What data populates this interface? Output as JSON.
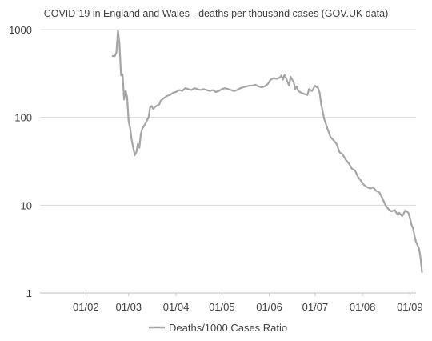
{
  "chart_data": {
    "type": "line",
    "title": "COVID-19 in England and Wales - deaths per thousand cases (GOV.UK data)",
    "xlabel": "",
    "ylabel": "",
    "x_scale": "date",
    "y_scale": "log",
    "ylim": [
      1,
      1000
    ],
    "xlim": [
      "2021-01-02",
      "2021-09-05"
    ],
    "x_tick_labels": [
      "01/02",
      "01/03",
      "01/04",
      "01/05",
      "01/06",
      "01/07",
      "01/08",
      "01/09"
    ],
    "y_tick_labels": [
      "1",
      "10",
      "100",
      "1000"
    ],
    "grid": "horizontal",
    "legend_position": "bottom",
    "series": [
      {
        "name": "Deaths/1000 Cases Ratio",
        "color": "#a5a5a5",
        "points": [
          [
            "2021-02-18",
            500
          ],
          [
            "2021-02-20",
            500
          ],
          [
            "2021-02-21",
            550
          ],
          [
            "2021-02-22",
            980
          ],
          [
            "2021-02-23",
            700
          ],
          [
            "2021-02-24",
            300
          ],
          [
            "2021-02-25",
            310
          ],
          [
            "2021-02-26",
            160
          ],
          [
            "2021-02-27",
            200
          ],
          [
            "2021-02-28",
            170
          ],
          [
            "2021-03-01",
            90
          ],
          [
            "2021-03-02",
            75
          ],
          [
            "2021-03-03",
            55
          ],
          [
            "2021-03-05",
            37
          ],
          [
            "2021-03-06",
            40
          ],
          [
            "2021-03-07",
            50
          ],
          [
            "2021-03-08",
            45
          ],
          [
            "2021-03-09",
            65
          ],
          [
            "2021-03-10",
            75
          ],
          [
            "2021-03-12",
            85
          ],
          [
            "2021-03-14",
            100
          ],
          [
            "2021-03-15",
            130
          ],
          [
            "2021-03-16",
            135
          ],
          [
            "2021-03-17",
            125
          ],
          [
            "2021-03-19",
            135
          ],
          [
            "2021-03-21",
            140
          ],
          [
            "2021-03-22",
            155
          ],
          [
            "2021-03-24",
            165
          ],
          [
            "2021-03-26",
            175
          ],
          [
            "2021-03-28",
            180
          ],
          [
            "2021-03-30",
            190
          ],
          [
            "2021-04-01",
            195
          ],
          [
            "2021-04-03",
            205
          ],
          [
            "2021-04-05",
            200
          ],
          [
            "2021-04-07",
            215
          ],
          [
            "2021-04-09",
            210
          ],
          [
            "2021-04-11",
            205
          ],
          [
            "2021-04-13",
            215
          ],
          [
            "2021-04-15",
            210
          ],
          [
            "2021-04-17",
            205
          ],
          [
            "2021-04-19",
            210
          ],
          [
            "2021-04-21",
            205
          ],
          [
            "2021-04-23",
            200
          ],
          [
            "2021-04-25",
            205
          ],
          [
            "2021-04-27",
            195
          ],
          [
            "2021-04-29",
            200
          ],
          [
            "2021-05-01",
            210
          ],
          [
            "2021-05-03",
            215
          ],
          [
            "2021-05-05",
            210
          ],
          [
            "2021-05-07",
            205
          ],
          [
            "2021-05-09",
            200
          ],
          [
            "2021-05-11",
            205
          ],
          [
            "2021-05-13",
            215
          ],
          [
            "2021-05-15",
            220
          ],
          [
            "2021-05-17",
            225
          ],
          [
            "2021-05-19",
            230
          ],
          [
            "2021-05-21",
            230
          ],
          [
            "2021-05-23",
            235
          ],
          [
            "2021-05-25",
            225
          ],
          [
            "2021-05-27",
            220
          ],
          [
            "2021-05-29",
            225
          ],
          [
            "2021-05-31",
            240
          ],
          [
            "2021-06-02",
            270
          ],
          [
            "2021-06-04",
            280
          ],
          [
            "2021-06-06",
            275
          ],
          [
            "2021-06-08",
            285
          ],
          [
            "2021-06-09",
            300
          ],
          [
            "2021-06-10",
            270
          ],
          [
            "2021-06-11",
            305
          ],
          [
            "2021-06-12",
            280
          ],
          [
            "2021-06-14",
            230
          ],
          [
            "2021-06-15",
            290
          ],
          [
            "2021-06-17",
            250
          ],
          [
            "2021-06-18",
            210
          ],
          [
            "2021-06-19",
            225
          ],
          [
            "2021-06-20",
            200
          ],
          [
            "2021-06-22",
            190
          ],
          [
            "2021-06-24",
            185
          ],
          [
            "2021-06-26",
            180
          ],
          [
            "2021-06-27",
            210
          ],
          [
            "2021-06-29",
            200
          ],
          [
            "2021-07-01",
            230
          ],
          [
            "2021-07-03",
            215
          ],
          [
            "2021-07-04",
            190
          ],
          [
            "2021-07-05",
            140
          ],
          [
            "2021-07-07",
            95
          ],
          [
            "2021-07-09",
            75
          ],
          [
            "2021-07-11",
            60
          ],
          [
            "2021-07-13",
            55
          ],
          [
            "2021-07-15",
            50
          ],
          [
            "2021-07-17",
            40
          ],
          [
            "2021-07-19",
            38
          ],
          [
            "2021-07-21",
            33
          ],
          [
            "2021-07-23",
            30
          ],
          [
            "2021-07-25",
            26
          ],
          [
            "2021-07-27",
            25
          ],
          [
            "2021-07-29",
            21
          ],
          [
            "2021-07-31",
            19
          ],
          [
            "2021-08-02",
            17
          ],
          [
            "2021-08-04",
            16
          ],
          [
            "2021-08-06",
            15.5
          ],
          [
            "2021-08-08",
            16
          ],
          [
            "2021-08-10",
            14.5
          ],
          [
            "2021-08-12",
            14
          ],
          [
            "2021-08-14",
            12
          ],
          [
            "2021-08-16",
            10
          ],
          [
            "2021-08-18",
            9
          ],
          [
            "2021-08-20",
            8.5
          ],
          [
            "2021-08-22",
            8.8
          ],
          [
            "2021-08-24",
            7.8
          ],
          [
            "2021-08-25",
            8.2
          ],
          [
            "2021-08-27",
            7.5
          ],
          [
            "2021-08-29",
            8.7
          ],
          [
            "2021-08-31",
            8.2
          ],
          [
            "2021-09-01",
            7.2
          ],
          [
            "2021-09-02",
            6
          ],
          [
            "2021-09-03",
            5.5
          ],
          [
            "2021-09-04",
            4.5
          ],
          [
            "2021-09-05",
            3.8
          ],
          [
            "2021-09-06",
            3.5
          ],
          [
            "2021-09-07",
            3.2
          ],
          [
            "2021-09-08",
            2.5
          ],
          [
            "2021-09-09",
            1.7
          ]
        ]
      }
    ]
  }
}
